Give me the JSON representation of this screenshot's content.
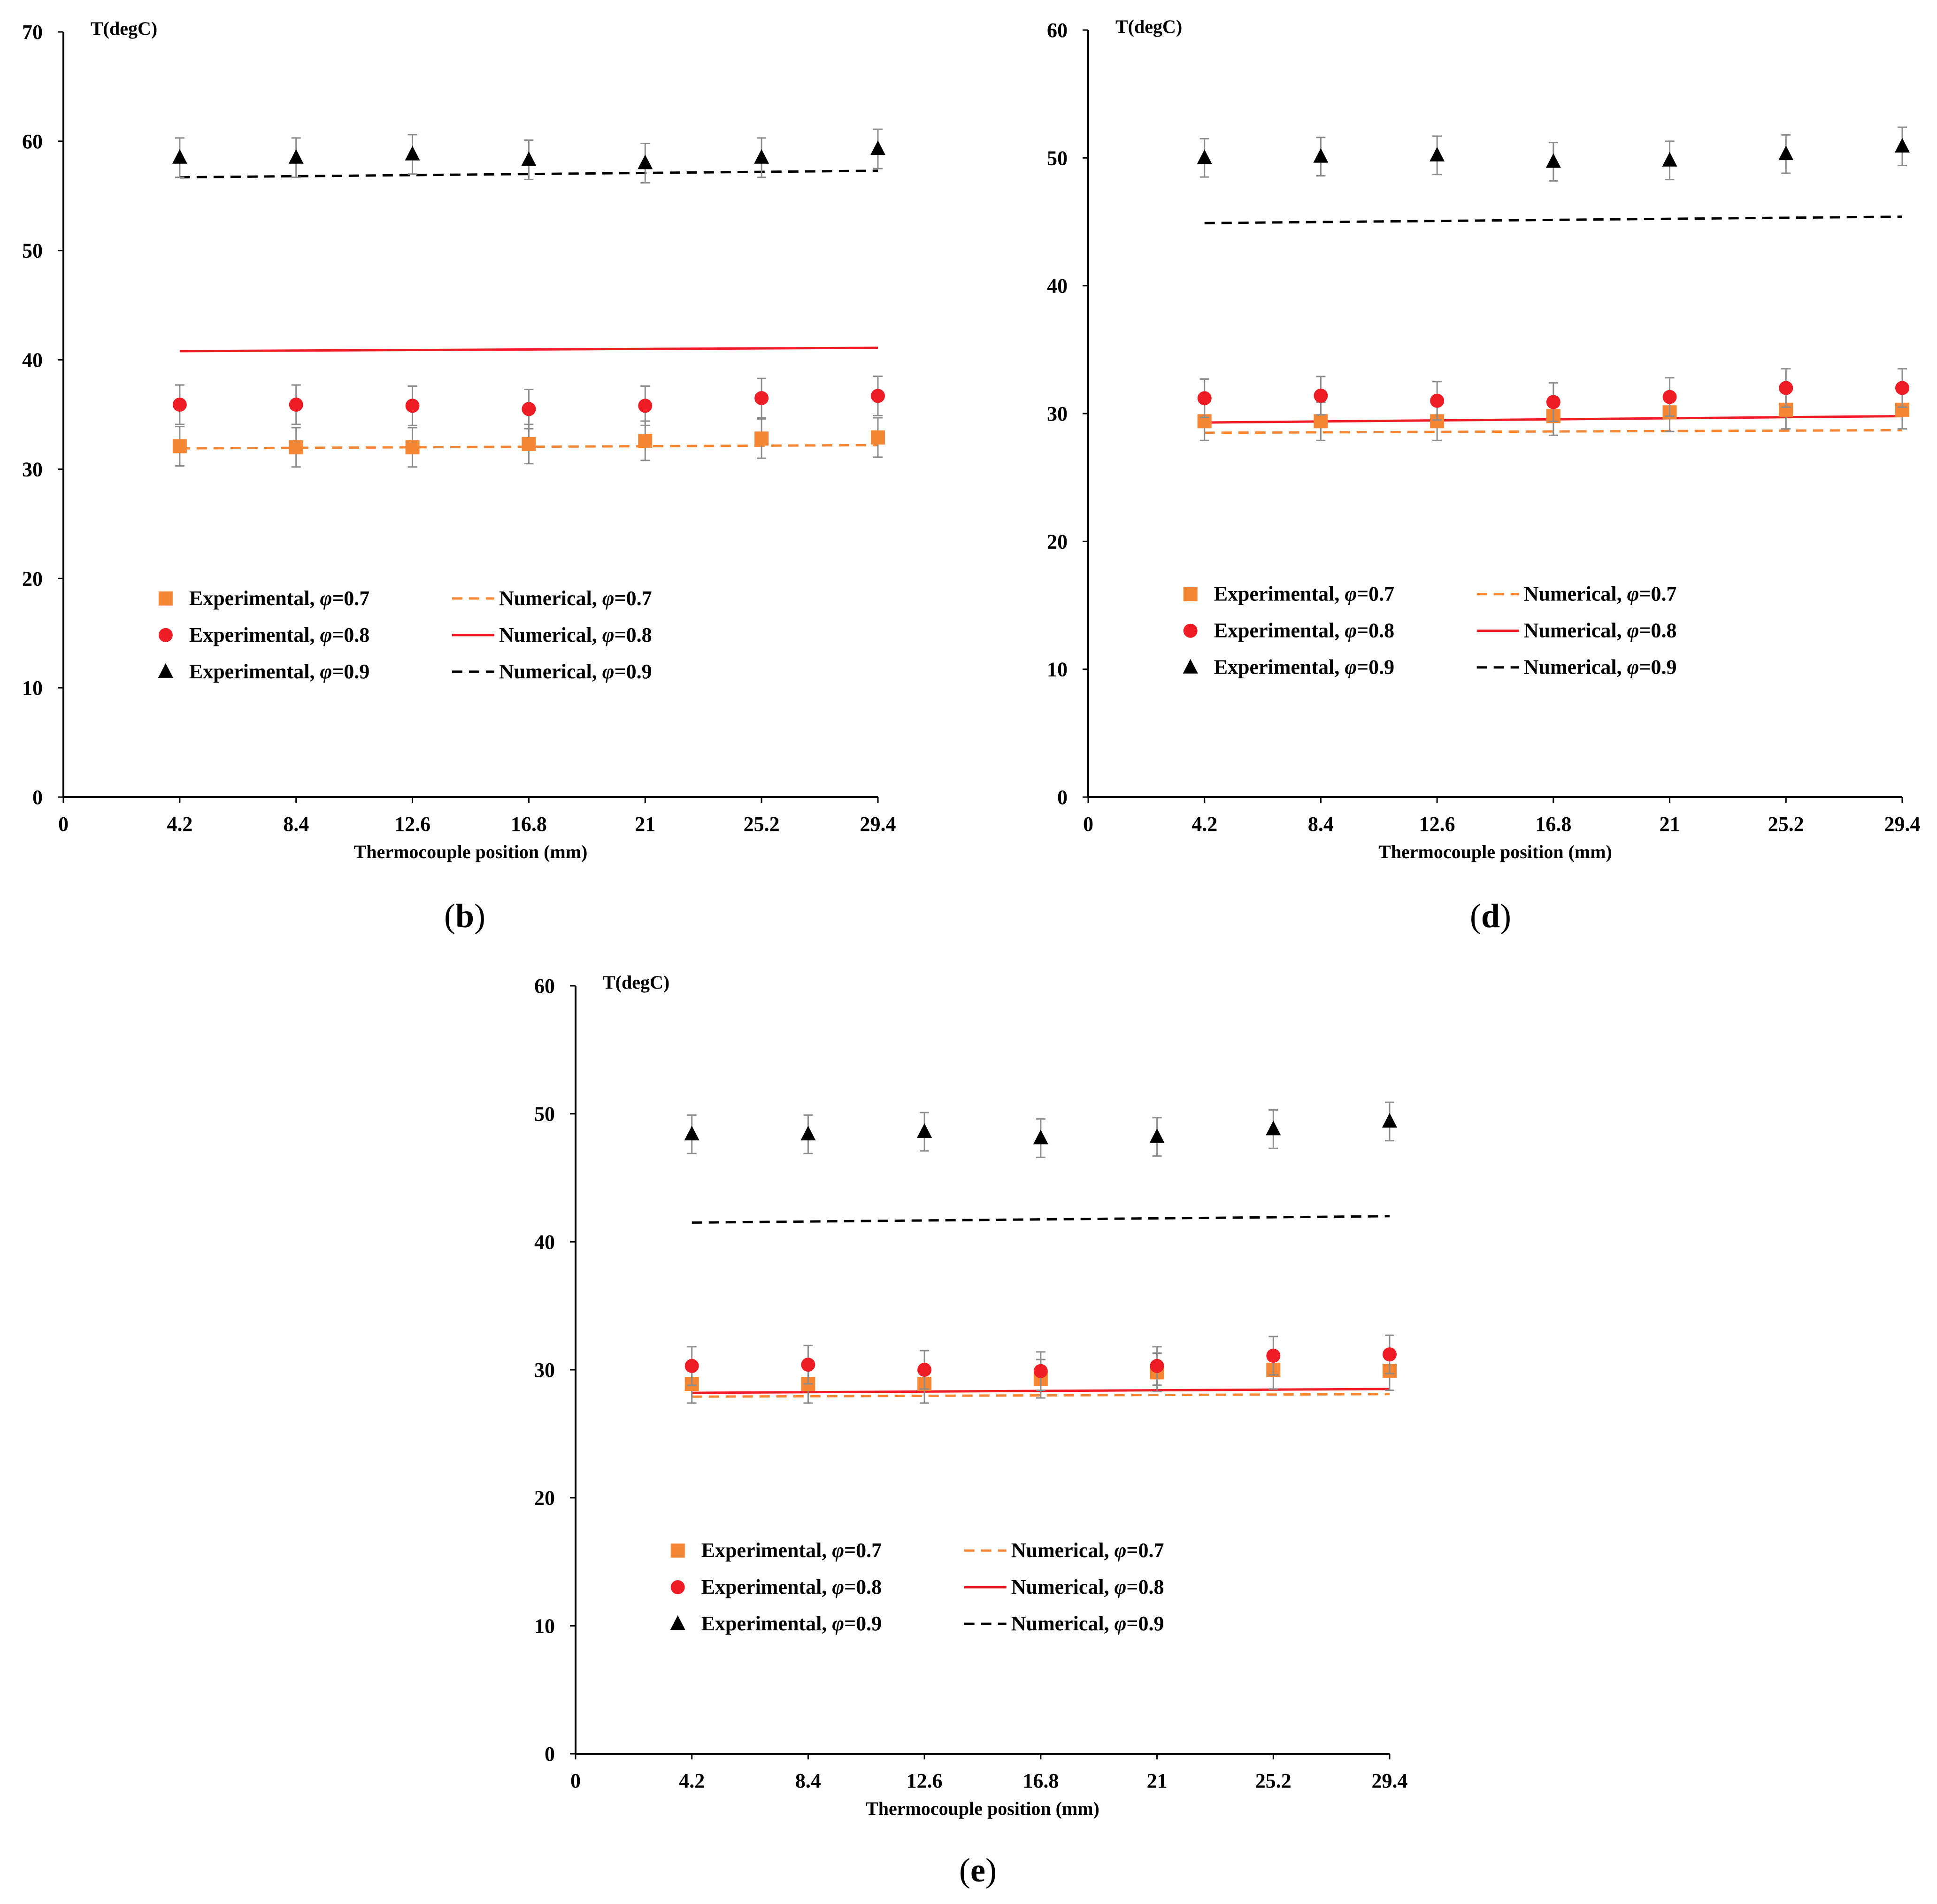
{
  "colors": {
    "phi07": "#f58634",
    "phi08": "#ee1c25",
    "phi09": "#000000",
    "errorbar": "#8c8c8c",
    "axis": "#000000"
  },
  "chart_data": [
    {
      "id": "b",
      "type": "scatter",
      "caption": {
        "open": "(",
        "letter": "b",
        "close": ")"
      },
      "ylabel": "T(degC)",
      "xlabel": "Thermocouple position (mm)",
      "xlim": [
        0,
        29.4
      ],
      "ylim": [
        0,
        70
      ],
      "x_ticks": [
        "0",
        "4.2",
        "8.4",
        "12.6",
        "16.8",
        "21",
        "25.2",
        "29.4"
      ],
      "y_ticks": [
        "0",
        "10",
        "20",
        "30",
        "40",
        "50",
        "60",
        "70"
      ],
      "x": [
        4.2,
        8.4,
        12.6,
        16.8,
        21,
        25.2,
        29.4
      ],
      "error": 1.8,
      "series": [
        {
          "key": "phi07",
          "kind": "experimental",
          "marker": "square",
          "values": [
            32.1,
            32.0,
            32.0,
            32.3,
            32.6,
            32.8,
            32.9
          ]
        },
        {
          "key": "phi08",
          "kind": "experimental",
          "marker": "circle",
          "values": [
            35.9,
            35.9,
            35.8,
            35.5,
            35.8,
            36.5,
            36.7
          ]
        },
        {
          "key": "phi09",
          "kind": "experimental",
          "marker": "triangle",
          "values": [
            58.5,
            58.5,
            58.8,
            58.3,
            58.0,
            58.5,
            59.3
          ]
        },
        {
          "key": "phi07",
          "kind": "numerical",
          "line": "dashed",
          "x": [
            4.2,
            29.4
          ],
          "values": [
            31.9,
            32.2
          ]
        },
        {
          "key": "phi08",
          "kind": "numerical",
          "line": "solid",
          "x": [
            4.2,
            29.4
          ],
          "values": [
            40.8,
            41.1
          ]
        },
        {
          "key": "phi09",
          "kind": "numerical",
          "line": "dashed",
          "x": [
            4.2,
            29.4
          ],
          "values": [
            56.7,
            57.3
          ]
        }
      ],
      "legend": {
        "exp": [
          {
            "key": "phi07",
            "marker": "square",
            "prefix": "Experimental, ",
            "sym": "φ",
            "suffix": "=0.7"
          },
          {
            "key": "phi08",
            "marker": "circle",
            "prefix": "Experimental, ",
            "sym": "φ",
            "suffix": "=0.8"
          },
          {
            "key": "phi09",
            "marker": "triangle",
            "prefix": "Experimental, ",
            "sym": "φ",
            "suffix": "=0.9"
          }
        ],
        "num": [
          {
            "key": "phi07",
            "line": "dashed",
            "prefix": "Numerical, ",
            "sym": "φ",
            "suffix": "=0.7"
          },
          {
            "key": "phi08",
            "line": "solid",
            "prefix": "Numerical, ",
            "sym": "φ",
            "suffix": "=0.8"
          },
          {
            "key": "phi09",
            "line": "dashed",
            "prefix": "Numerical, ",
            "sym": "φ",
            "suffix": "=0.9"
          }
        ]
      }
    },
    {
      "id": "d",
      "type": "scatter",
      "caption": {
        "open": "(",
        "letter": "d",
        "close": ")"
      },
      "ylabel": "T(degC)",
      "xlabel": "Thermocouple position (mm)",
      "xlim": [
        0,
        29.4
      ],
      "ylim": [
        0,
        60
      ],
      "x_ticks": [
        "0",
        "4.2",
        "8.4",
        "12.6",
        "16.8",
        "21",
        "25.2",
        "29.4"
      ],
      "y_ticks": [
        "0",
        "10",
        "20",
        "30",
        "40",
        "50",
        "60"
      ],
      "x": [
        4.2,
        8.4,
        12.6,
        16.8,
        21,
        25.2,
        29.4
      ],
      "error": 1.5,
      "series": [
        {
          "key": "phi07",
          "kind": "experimental",
          "marker": "square",
          "values": [
            29.4,
            29.4,
            29.4,
            29.8,
            30.1,
            30.3,
            30.3
          ]
        },
        {
          "key": "phi08",
          "kind": "experimental",
          "marker": "circle",
          "values": [
            31.2,
            31.4,
            31.0,
            30.9,
            31.3,
            32.0,
            32.0
          ]
        },
        {
          "key": "phi09",
          "kind": "experimental",
          "marker": "triangle",
          "values": [
            50.0,
            50.1,
            50.2,
            49.7,
            49.8,
            50.3,
            50.9
          ]
        },
        {
          "key": "phi07",
          "kind": "numerical",
          "line": "dashed",
          "x": [
            4.2,
            29.4
          ],
          "values": [
            28.5,
            28.7
          ]
        },
        {
          "key": "phi08",
          "kind": "numerical",
          "line": "solid",
          "x": [
            4.2,
            29.4
          ],
          "values": [
            29.3,
            29.8
          ]
        },
        {
          "key": "phi09",
          "kind": "numerical",
          "line": "dashed",
          "x": [
            4.2,
            29.4
          ],
          "values": [
            44.9,
            45.4
          ]
        }
      ],
      "legend": {
        "exp": [
          {
            "key": "phi07",
            "marker": "square",
            "prefix": "Experimental, ",
            "sym": "φ",
            "suffix": "=0.7"
          },
          {
            "key": "phi08",
            "marker": "circle",
            "prefix": "Experimental, ",
            "sym": "φ",
            "suffix": "=0.8"
          },
          {
            "key": "phi09",
            "marker": "triangle",
            "prefix": "Experimental, ",
            "sym": "φ",
            "suffix": "=0.9"
          }
        ],
        "num": [
          {
            "key": "phi07",
            "line": "dashed",
            "prefix": "Numerical, ",
            "sym": "φ",
            "suffix": "=0.7"
          },
          {
            "key": "phi08",
            "line": "solid",
            "prefix": "Numerical, ",
            "sym": "φ",
            "suffix": "=0.8"
          },
          {
            "key": "phi09",
            "line": "dashed",
            "prefix": "Numerical, ",
            "sym": "φ",
            "suffix": "=0.9"
          }
        ]
      }
    },
    {
      "id": "e",
      "type": "scatter",
      "caption": {
        "open": "(",
        "letter": "e",
        "close": ")"
      },
      "ylabel": "T(degC)",
      "xlabel": "Thermocouple position (mm)",
      "xlim": [
        0,
        29.4
      ],
      "ylim": [
        0,
        60
      ],
      "x_ticks": [
        "0",
        "4.2",
        "8.4",
        "12.6",
        "16.8",
        "21",
        "25.2",
        "29.4"
      ],
      "y_ticks": [
        "0",
        "10",
        "20",
        "30",
        "40",
        "50",
        "60"
      ],
      "x": [
        4.2,
        8.4,
        12.6,
        16.8,
        21,
        25.2,
        29.4
      ],
      "error": 1.5,
      "series": [
        {
          "key": "phi07",
          "kind": "experimental",
          "marker": "square",
          "values": [
            28.9,
            28.9,
            28.9,
            29.3,
            29.8,
            30.0,
            29.9
          ]
        },
        {
          "key": "phi08",
          "kind": "experimental",
          "marker": "circle",
          "values": [
            30.3,
            30.4,
            30.0,
            29.9,
            30.3,
            31.1,
            31.2
          ]
        },
        {
          "key": "phi09",
          "kind": "experimental",
          "marker": "triangle",
          "values": [
            48.4,
            48.4,
            48.6,
            48.1,
            48.2,
            48.8,
            49.4
          ]
        },
        {
          "key": "phi07",
          "kind": "numerical",
          "line": "dashed",
          "x": [
            4.2,
            29.4
          ],
          "values": [
            27.9,
            28.1
          ]
        },
        {
          "key": "phi08",
          "kind": "numerical",
          "line": "solid",
          "x": [
            4.2,
            29.4
          ],
          "values": [
            28.2,
            28.5
          ]
        },
        {
          "key": "phi09",
          "kind": "numerical",
          "line": "dashed",
          "x": [
            4.2,
            29.4
          ],
          "values": [
            41.5,
            42.0
          ]
        }
      ],
      "legend": {
        "exp": [
          {
            "key": "phi07",
            "marker": "square",
            "prefix": "Experimental, ",
            "sym": "φ",
            "suffix": "=0.7"
          },
          {
            "key": "phi08",
            "marker": "circle",
            "prefix": "Experimental, ",
            "sym": "φ",
            "suffix": "=0.8"
          },
          {
            "key": "phi09",
            "marker": "triangle",
            "prefix": "Experimental, ",
            "sym": "φ",
            "suffix": "=0.9"
          }
        ],
        "num": [
          {
            "key": "phi07",
            "line": "dashed",
            "prefix": "Numerical, ",
            "sym": "φ",
            "suffix": "=0.7"
          },
          {
            "key": "phi08",
            "line": "solid",
            "prefix": "Numerical, ",
            "sym": "φ",
            "suffix": "=0.8"
          },
          {
            "key": "phi09",
            "line": "dashed",
            "prefix": "Numerical, ",
            "sym": "φ",
            "suffix": "=0.9"
          }
        ]
      }
    }
  ]
}
